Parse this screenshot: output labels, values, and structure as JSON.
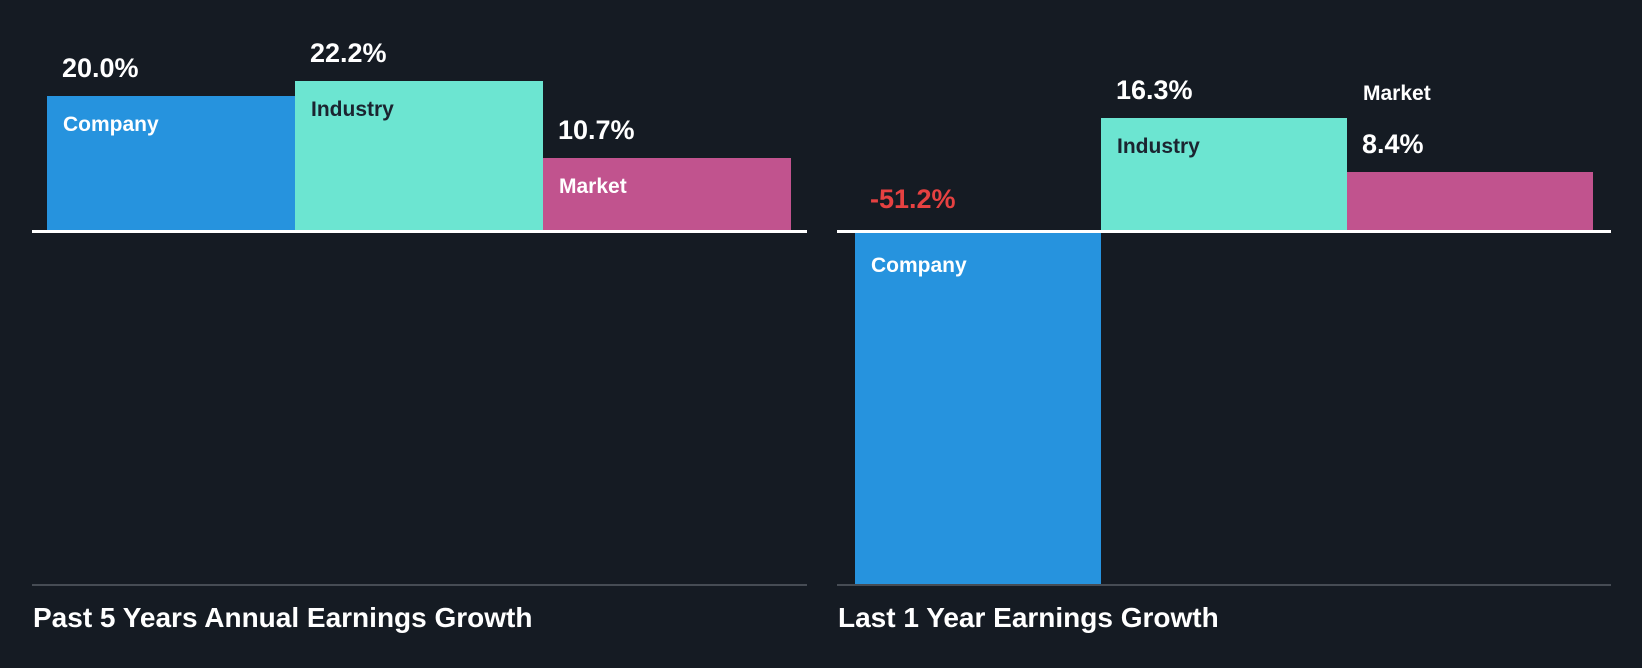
{
  "page": {
    "background": "#151B23"
  },
  "colors": {
    "company_blue": "#2693DE",
    "industry_teal": "#6CE5D1",
    "market_magenta": "#C1538E",
    "negative_red": "#E64141",
    "white": "#FFFFFF",
    "dark_label": "#1B2430",
    "baseline_white": "#FFFFFF",
    "divider_gray": "#464C54",
    "title_white": "#FFFFFF"
  },
  "chart_data": [
    {
      "type": "bar",
      "title": "Past 5 Years Annual Earnings Growth",
      "unit": "percent",
      "baseline_value": 0,
      "axes_visible": false,
      "grid": false,
      "legend": false,
      "categories": [
        "Company",
        "Industry",
        "Market"
      ],
      "values": [
        20.0,
        22.2,
        10.7
      ],
      "bars": [
        {
          "name": "Company",
          "value": 20.0,
          "value_label": "20.0%",
          "color_key": "company_blue",
          "name_color_key": "white",
          "value_color_key": "white",
          "name_placement": "inside"
        },
        {
          "name": "Industry",
          "value": 22.2,
          "value_label": "22.2%",
          "color_key": "industry_teal",
          "name_color_key": "dark_label",
          "value_color_key": "white",
          "name_placement": "inside"
        },
        {
          "name": "Market",
          "value": 10.7,
          "value_label": "10.7%",
          "color_key": "market_magenta",
          "name_color_key": "white",
          "value_color_key": "white",
          "name_placement": "inside"
        }
      ]
    },
    {
      "type": "bar",
      "title": "Last 1 Year Earnings Growth",
      "unit": "percent",
      "baseline_value": 0,
      "axes_visible": false,
      "grid": false,
      "legend": false,
      "categories": [
        "Company",
        "Industry",
        "Market"
      ],
      "values": [
        -51.2,
        16.3,
        8.4
      ],
      "bars": [
        {
          "name": "Company",
          "value": -51.2,
          "value_label": "-51.2%",
          "color_key": "company_blue",
          "name_color_key": "white",
          "value_color_key": "negative_red",
          "name_placement": "inside"
        },
        {
          "name": "Industry",
          "value": 16.3,
          "value_label": "16.3%",
          "color_key": "industry_teal",
          "name_color_key": "dark_label",
          "value_color_key": "white",
          "name_placement": "inside"
        },
        {
          "name": "Market",
          "value": 8.4,
          "value_label": "8.4%",
          "color_key": "market_magenta",
          "name_color_key": "white",
          "value_color_key": "white",
          "name_placement": "above"
        }
      ]
    }
  ]
}
